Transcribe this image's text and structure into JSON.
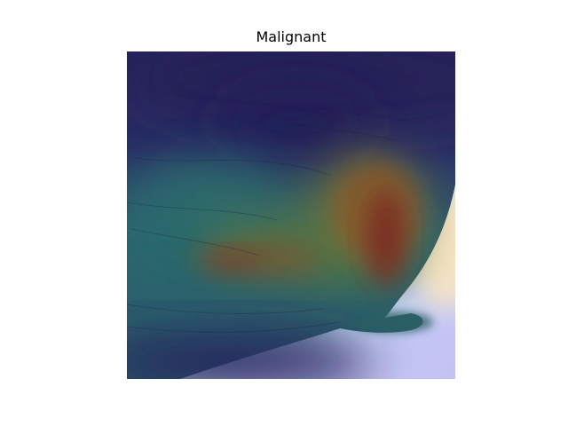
{
  "figure": {
    "title": "Malignant"
  },
  "image": {
    "description_icon": "heatmap-overlay-image",
    "colormap_colors": {
      "low": "#26245e",
      "mid_low": "#2a6a72",
      "mid": "#4f7a4a",
      "mid_high": "#8a5a2e",
      "high": "#7a2a22",
      "background_light": "#c8eef5",
      "background_lavender": "#c8c4f4",
      "background_cream": "#fbe8c8"
    }
  }
}
